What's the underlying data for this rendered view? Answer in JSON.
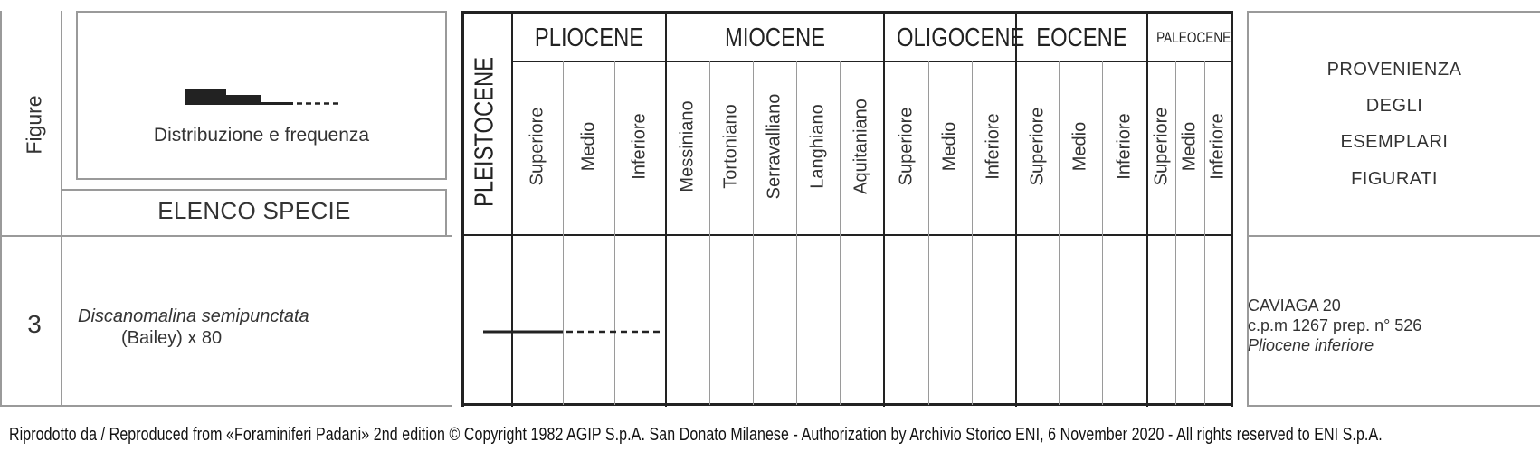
{
  "header": {
    "figure_label": "Figure",
    "legend_caption": "Distribuzione e frequenza",
    "species_list_label": "ELENCO SPECIE",
    "provenance_lines": [
      "PROVENIENZA",
      "DEGLI",
      "ESEMPLARI",
      "FIGURATI"
    ]
  },
  "epochs": {
    "pleistocene": "PLEISTOCENE",
    "pliocene": "PLIOCENE",
    "miocene": "MIOCENE",
    "oligocene": "OLIGOCENE",
    "eocene": "EOCENE",
    "paleocene": "PALEOCENE"
  },
  "stages": {
    "pliocene": [
      "Superiore",
      "Medio",
      "Inferiore"
    ],
    "miocene": [
      "Messiniano",
      "Tortoniano",
      "Serravalliano",
      "Langhiano",
      "Aquitaniano"
    ],
    "oligocene": [
      "Superiore",
      "Medio",
      "Inferiore"
    ],
    "eocene": [
      "Superiore",
      "Medio",
      "Inferiore"
    ],
    "paleocene": [
      "Superiore",
      "Medio",
      "Inferiore"
    ]
  },
  "row": {
    "figure_number": "3",
    "species_name": "Discanomalina semipunctata",
    "species_author": "(Bailey) x 80",
    "source_line1": "CAVIAGA 20",
    "source_line2": "c.p.m 1267 prep. n° 526",
    "source_line3": "Pliocene inferiore"
  },
  "footer": {
    "credit": "Riprodotto da / Reproduced from «Foraminiferi Padani» 2nd edition © Copyright 1982 AGIP S.p.A. San Donato Milanese - Authorization by Archivio Storico ENI, 6 November 2020 - All rights reserved to ENI S.p.A."
  }
}
